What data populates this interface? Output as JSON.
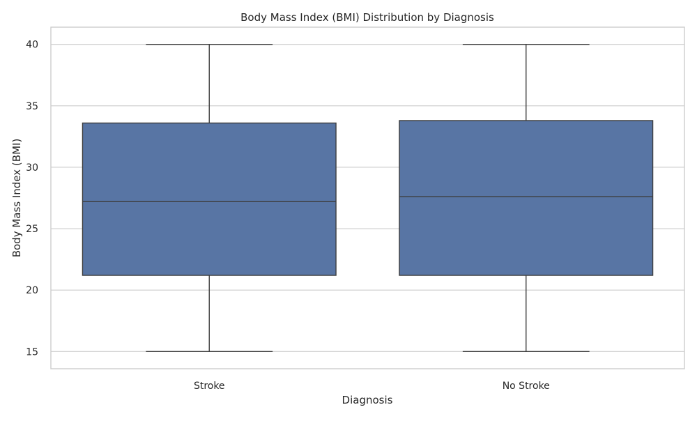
{
  "chart_data": {
    "type": "box",
    "title": "Body Mass Index (BMI) Distribution by Diagnosis",
    "xlabel": "Diagnosis",
    "ylabel": "Body Mass Index (BMI)",
    "ylim": [
      13.6,
      41.4
    ],
    "yticks": [
      15,
      20,
      25,
      30,
      35,
      40
    ],
    "grid": true,
    "categories": [
      "Stroke",
      "No Stroke"
    ],
    "boxes": [
      {
        "category": "Stroke",
        "whisker_low": 15,
        "q1": 21.2,
        "median": 27.2,
        "q3": 33.6,
        "whisker_high": 40
      },
      {
        "category": "No Stroke",
        "whisker_low": 15,
        "q1": 21.2,
        "median": 27.6,
        "q3": 33.8,
        "whisker_high": 40
      }
    ],
    "colors": {
      "box_fill": "#5875a4",
      "box_edge": "#3d3d3d",
      "grid": "#cccccc",
      "frame": "#cccccc"
    }
  }
}
